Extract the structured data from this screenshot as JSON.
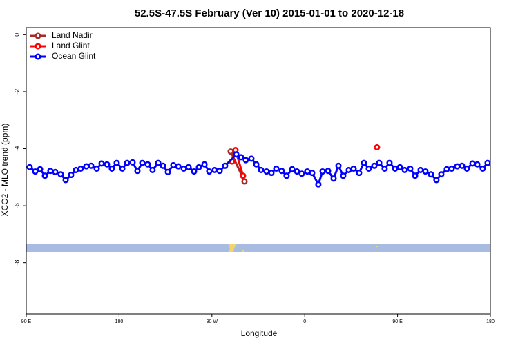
{
  "chart_data": {
    "type": "line",
    "title": "52.5S-47.5S February (Ver 10)   2015-01-01 to 2020-12-18",
    "xlabel": "Longitude",
    "ylabel": "XCO2 - MLO trend (ppm)",
    "xlim": [
      90,
      540
    ],
    "ylim": [
      -9.8,
      0.25
    ],
    "xticks": [
      {
        "value": 90,
        "label": "90 E"
      },
      180,
      {
        "value": 270,
        "label": "90 W"
      },
      {
        "value": 360,
        "label": "0"
      },
      {
        "value": 450,
        "label": "90 E"
      },
      {
        "value": 540,
        "label": "180"
      }
    ],
    "yticks": [
      0,
      -2,
      -4,
      -6,
      -8
    ],
    "legend": "top-left",
    "series": [
      {
        "name": "Land Nadir",
        "color": "#a52a2a",
        "x": [
          288.2,
          301.6
        ],
        "values": [
          -4.1,
          -5.15
        ]
      },
      {
        "name": "Land Glint",
        "color": "#ff0000",
        "x": [
          289.5,
          292.9,
          300.2,
          365,
          430.1
        ],
        "values": [
          -4.45,
          -4.05,
          -4.95,
          null,
          -3.95
        ]
      },
      {
        "name": "Ocean Glint",
        "color": "#0000ff",
        "x": [
          93.3,
          98.7,
          103.4,
          108.1,
          113.4,
          118.1,
          123.5,
          128.2,
          133.5,
          138.2,
          142.9,
          148.3,
          152.9,
          158.3,
          163.0,
          168.3,
          173.0,
          177.7,
          183.1,
          187.8,
          193.1,
          197.8,
          202.5,
          207.8,
          212.5,
          217.9,
          222.6,
          227.3,
          232.6,
          237.3,
          242.7,
          247.4,
          252.7,
          257.4,
          262.8,
          267.4,
          272.8,
          277.5,
          282.8,
          293.6,
          298.2,
          302.9,
          308.3,
          313.0,
          317.7,
          323.0,
          327.7,
          332.4,
          337.7,
          342.4,
          347.8,
          352.5,
          357.2,
          362.5,
          367.2,
          373.2,
          377.3,
          382.6,
          388.0,
          392.7,
          397.3,
          402.7,
          407.4,
          412.7,
          417.4,
          422.1,
          427.5,
          432.2,
          437.5,
          442.2,
          447.6,
          452.3,
          457.0,
          462.3,
          467.0,
          472.3,
          477.0,
          482.4,
          487.7,
          492.4,
          497.8,
          502.5,
          507.8,
          512.5,
          517.2,
          522.6,
          527.3,
          532.6,
          537.3
        ],
        "values": [
          -4.65,
          -4.8,
          -4.72,
          -4.95,
          -4.78,
          -4.82,
          -4.9,
          -5.1,
          -4.92,
          -4.75,
          -4.7,
          -4.62,
          -4.6,
          -4.7,
          -4.52,
          -4.55,
          -4.7,
          -4.5,
          -4.7,
          -4.5,
          -4.48,
          -4.78,
          -4.5,
          -4.55,
          -4.75,
          -4.5,
          -4.6,
          -4.82,
          -4.58,
          -4.62,
          -4.7,
          -4.65,
          -4.8,
          -4.65,
          -4.55,
          -4.8,
          -4.75,
          -4.78,
          -4.6,
          -4.2,
          -4.3,
          -4.4,
          -4.35,
          -4.55,
          -4.75,
          -4.8,
          -4.85,
          -4.7,
          -4.78,
          -4.95,
          -4.72,
          -4.8,
          -4.88,
          -4.8,
          -4.85,
          -5.25,
          -4.8,
          -4.78,
          -5.05,
          -4.6,
          -4.95,
          -4.75,
          -4.7,
          -4.85,
          -4.5,
          -4.7,
          -4.6,
          -4.5,
          -4.7,
          -4.5,
          -4.7,
          -4.65,
          -4.75,
          -4.7,
          -4.95,
          -4.75,
          -4.8,
          -4.9,
          -5.1,
          -4.9,
          -4.72,
          -4.7,
          -4.62,
          -4.6,
          -4.7,
          -4.52,
          -4.55,
          -4.7,
          -4.5
        ]
      }
    ]
  }
}
